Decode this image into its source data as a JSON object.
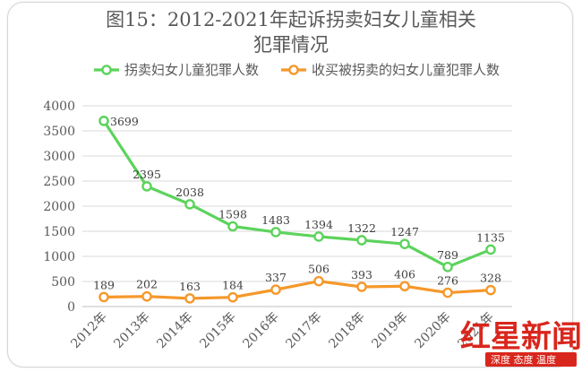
{
  "chart_data": {
    "type": "line",
    "title_line1": "图15：2012-2021年起诉拐卖妇女儿童相关",
    "title_line2": "犯罪情况",
    "categories": [
      "2012年",
      "2013年",
      "2014年",
      "2015年",
      "2016年",
      "2017年",
      "2018年",
      "2019年",
      "2020年",
      "2021年"
    ],
    "series": [
      {
        "name": "拐卖妇女儿童犯罪人数",
        "color": "#5cd35c",
        "values": [
          3699,
          2395,
          2038,
          1598,
          1483,
          1394,
          1322,
          1247,
          789,
          1135
        ]
      },
      {
        "name": "收买被拐卖的妇女儿童犯罪人数",
        "color": "#f5982a",
        "values": [
          189,
          202,
          163,
          184,
          337,
          506,
          393,
          406,
          276,
          328
        ]
      }
    ],
    "yticks": [
      0,
      500,
      1000,
      1500,
      2000,
      2500,
      3000,
      3500,
      4000
    ],
    "ylim": [
      0,
      4000
    ],
    "grid": true,
    "legend_position": "top"
  },
  "watermark": {
    "brand": "红星新闻",
    "caption": "深度 态度 温度",
    "color": "#d9261c"
  }
}
